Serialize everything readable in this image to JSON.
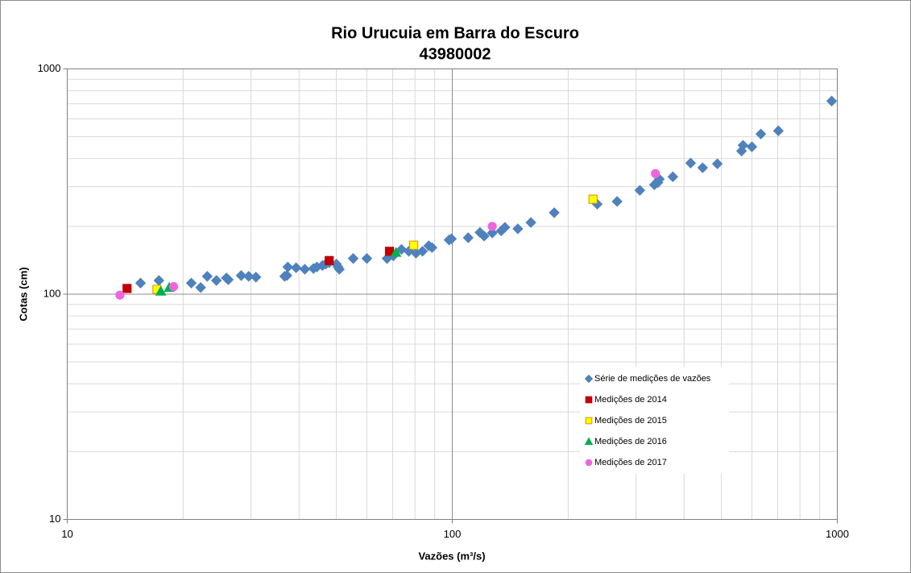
{
  "chart_data": {
    "type": "scatter",
    "title": "Rio Urucuia em Barra do Escuro",
    "subtitle": "43980002",
    "x_label": "Vazões (m³/s)",
    "y_label": "Cotas (cm)",
    "xlog": true,
    "ylog": true,
    "xlim": [
      10,
      1000
    ],
    "ylim": [
      10,
      1000
    ],
    "xticks": [
      10,
      100,
      1000
    ],
    "yticks": [
      10,
      100,
      1000
    ],
    "xminorticks": [
      20,
      30,
      40,
      50,
      60,
      70,
      80,
      90,
      200,
      300,
      400,
      500,
      600,
      700,
      800,
      900
    ],
    "yminorticks": [
      20,
      30,
      40,
      50,
      60,
      70,
      80,
      90,
      200,
      300,
      400,
      500,
      600,
      700,
      800,
      900
    ],
    "grid": true,
    "legend": "lower right",
    "series": [
      {
        "name": "Série de medições de vazões",
        "color": "#4f81bd",
        "marker": "diamond",
        "x": [
          15.5,
          17.3,
          21.0,
          22.2,
          23.1,
          24.4,
          25.9,
          26.2,
          28.3,
          29.6,
          30.9,
          36.7,
          37.2,
          37.4,
          39.3,
          41.4,
          43.6,
          44.5,
          46.0,
          46.9,
          47.9,
          50.0,
          50.5,
          50.9,
          55.3,
          60.0,
          67.7,
          70.3,
          73.8,
          77.1,
          80.5,
          83.7,
          86.9,
          88.6,
          98.1,
          99.5,
          110,
          118,
          121,
          127,
          134,
          137,
          148,
          160,
          184,
          238,
          268,
          307,
          335,
          342,
          345,
          374,
          416,
          447,
          488,
          564,
          569,
          600,
          633,
          703,
          967
        ],
        "values": [
          112,
          115,
          112,
          107,
          120,
          115,
          118,
          116,
          121,
          120,
          119,
          120,
          121,
          132,
          131,
          129,
          130,
          132,
          134,
          136,
          138,
          136,
          132,
          129,
          144,
          144,
          144,
          148,
          158,
          155,
          152,
          155,
          164,
          161,
          174,
          176,
          178,
          188,
          181,
          187,
          191,
          198,
          195,
          208,
          230,
          251,
          258,
          289,
          306,
          313,
          324,
          332,
          382,
          364,
          379,
          432,
          458,
          451,
          514,
          531,
          720
        ]
      },
      {
        "name": "Medições de 2014",
        "color": "#c00000",
        "marker": "square",
        "x": [
          14.3,
          47.9,
          68.7
        ],
        "values": [
          106,
          141,
          155
        ]
      },
      {
        "name": "Medições de 2015",
        "color": "#ffff00",
        "marker": "square",
        "x": [
          17.1,
          79.4,
          232
        ],
        "values": [
          105,
          165,
          264
        ]
      },
      {
        "name": "Medições de 2016",
        "color": "#00b050",
        "marker": "triangle",
        "x": [
          17.5,
          18.4,
          71.4
        ],
        "values": [
          103,
          107,
          153
        ]
      },
      {
        "name": "Medições de 2017",
        "color": "#ee66dd",
        "marker": "circle",
        "x": [
          13.7,
          18.9,
          127,
          337
        ],
        "values": [
          99,
          108,
          200,
          343
        ]
      }
    ]
  }
}
